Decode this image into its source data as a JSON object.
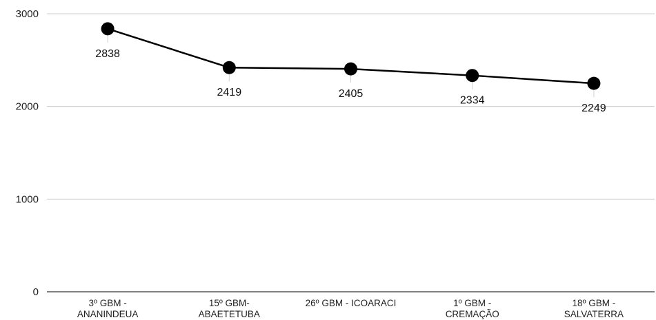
{
  "chart_data": {
    "type": "line",
    "title": "",
    "xlabel": "",
    "ylabel": "",
    "ylim": [
      0,
      3000
    ],
    "yticks": [
      0,
      1000,
      2000,
      3000
    ],
    "grid": true,
    "legend": "none",
    "categories": [
      [
        "3º GBM -",
        "ANANINDEUA"
      ],
      [
        "15º GBM-",
        "ABAETETUBA"
      ],
      [
        "26º GBM - ICOARACI"
      ],
      [
        "1º GBM -",
        "CREMAÇÃO"
      ],
      [
        "18º GBM -",
        "SALVATERRA"
      ]
    ],
    "series": [
      {
        "values": [
          2838,
          2419,
          2405,
          2334,
          2249
        ]
      }
    ],
    "colors": {
      "line": "#000000",
      "marker": "#000000",
      "grid": "#cccccc",
      "axis": "#333333"
    }
  }
}
